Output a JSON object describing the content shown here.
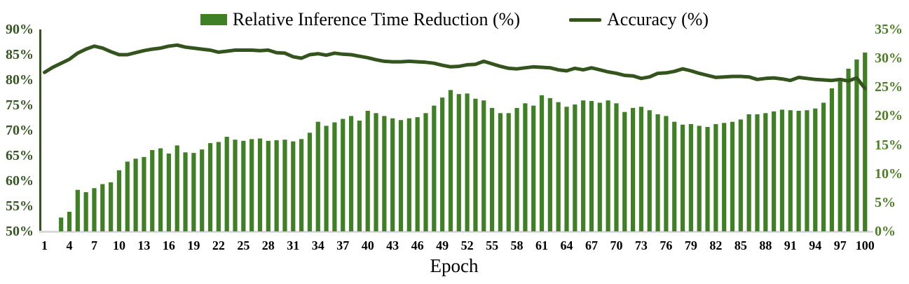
{
  "chart_data": {
    "type": "combo",
    "title": "",
    "xlabel": "Epoch",
    "grid": false,
    "legend_position": "top-center",
    "x_axis": {
      "label": "Epoch",
      "range": [
        1,
        100
      ],
      "tick_step": 3,
      "tick_labels": [
        "1",
        "4",
        "7",
        "10",
        "13",
        "16",
        "19",
        "22",
        "25",
        "28",
        "31",
        "34",
        "37",
        "40",
        "43",
        "46",
        "49",
        "52",
        "55",
        "58",
        "61",
        "64",
        "67",
        "70",
        "73",
        "76",
        "79",
        "82",
        "85",
        "88",
        "91",
        "94",
        "97",
        "100"
      ],
      "tick_color": "#000000"
    },
    "left_axis": {
      "range": [
        50,
        90
      ],
      "tick_step": 5,
      "unit": "%",
      "tick_labels": [
        "90%",
        "85%",
        "80%",
        "75%",
        "70%",
        "65%",
        "60%",
        "55%",
        "50%"
      ],
      "tick_color": "#375623",
      "axis_line_color": "#33561c"
    },
    "right_axis": {
      "range": [
        0,
        35
      ],
      "tick_step": 5,
      "unit": "%",
      "tick_labels": [
        "35%",
        "30%",
        "25%",
        "20%",
        "15%",
        "10%",
        "5%",
        "0%"
      ],
      "tick_color": "#4e7e26"
    },
    "x": [
      1,
      2,
      3,
      4,
      5,
      6,
      7,
      8,
      9,
      10,
      11,
      12,
      13,
      14,
      15,
      16,
      17,
      18,
      19,
      20,
      21,
      22,
      23,
      24,
      25,
      26,
      27,
      28,
      29,
      30,
      31,
      32,
      33,
      34,
      35,
      36,
      37,
      38,
      39,
      40,
      41,
      42,
      43,
      44,
      45,
      46,
      47,
      48,
      49,
      50,
      51,
      52,
      53,
      54,
      55,
      56,
      57,
      58,
      59,
      60,
      61,
      62,
      63,
      64,
      65,
      66,
      67,
      68,
      69,
      70,
      71,
      72,
      73,
      74,
      75,
      76,
      77,
      78,
      79,
      80,
      81,
      82,
      83,
      84,
      85,
      86,
      87,
      88,
      89,
      90,
      91,
      92,
      93,
      94,
      95,
      96,
      97,
      98,
      99,
      100
    ],
    "series": [
      {
        "name": "Relative Inference Time Reduction (%)",
        "type": "bar",
        "axis": "right",
        "color": "#3f8024",
        "values": [
          0,
          0,
          2.4,
          3.4,
          7.2,
          6.8,
          7.5,
          8.2,
          8.5,
          10.6,
          12.1,
          12.6,
          12.9,
          14.1,
          14.4,
          13.5,
          14.9,
          13.7,
          13.6,
          14.2,
          15.3,
          15.5,
          16.4,
          15.9,
          15.7,
          16.0,
          16.1,
          15.7,
          15.8,
          15.9,
          15.6,
          16.0,
          17.1,
          19.0,
          18.3,
          18.9,
          19.5,
          20.0,
          19.2,
          20.9,
          20.5,
          20.0,
          19.6,
          19.3,
          19.6,
          19.8,
          20.5,
          21.8,
          23.2,
          24.5,
          23.8,
          23.9,
          23.0,
          22.7,
          21.4,
          20.5,
          20.5,
          21.4,
          22.2,
          21.8,
          23.6,
          23.1,
          22.4,
          21.6,
          22.0,
          22.7,
          22.6,
          22.3,
          22.7,
          22.2,
          20.7,
          21.4,
          21.6,
          21.0,
          20.3,
          20.0,
          19.0,
          18.5,
          18.6,
          18.3,
          18.1,
          18.6,
          18.8,
          19.0,
          19.4,
          20.3,
          20.3,
          20.5,
          20.8,
          21.1,
          21.0,
          20.9,
          21.0,
          21.3,
          22.3,
          24.8,
          26.0,
          28.2,
          29.8,
          31.0
        ]
      },
      {
        "name": "Accuracy (%)",
        "type": "line",
        "axis": "left",
        "color": "#33541d",
        "values": [
          81.5,
          82.5,
          83.3,
          84.1,
          85.3,
          86.1,
          86.7,
          86.3,
          85.6,
          85.0,
          85.0,
          85.4,
          85.8,
          86.1,
          86.3,
          86.7,
          86.9,
          86.5,
          86.3,
          86.1,
          85.9,
          85.5,
          85.7,
          85.9,
          85.9,
          85.9,
          85.8,
          85.9,
          85.4,
          85.3,
          84.6,
          84.3,
          85.0,
          85.2,
          84.9,
          85.3,
          85.1,
          85.0,
          84.7,
          84.4,
          84.0,
          83.7,
          83.6,
          83.6,
          83.7,
          83.6,
          83.5,
          83.3,
          82.9,
          82.6,
          82.7,
          83.0,
          83.1,
          83.7,
          83.2,
          82.7,
          82.3,
          82.2,
          82.4,
          82.6,
          82.5,
          82.4,
          82.0,
          81.8,
          82.3,
          82.0,
          82.4,
          82.0,
          81.6,
          81.3,
          80.9,
          80.8,
          80.3,
          80.6,
          81.3,
          81.4,
          81.7,
          82.2,
          81.8,
          81.3,
          80.9,
          80.5,
          80.6,
          80.7,
          80.7,
          80.6,
          80.1,
          80.3,
          80.4,
          80.2,
          79.9,
          80.5,
          80.3,
          80.1,
          80.0,
          79.9,
          80.1,
          79.8,
          80.4,
          78.3
        ]
      }
    ]
  },
  "legend": {
    "items": [
      {
        "label": "Relative Inference Time Reduction (%)",
        "swatch": "bar-swatch"
      },
      {
        "label": "Accuracy (%)",
        "swatch": "line-swatch"
      }
    ]
  }
}
